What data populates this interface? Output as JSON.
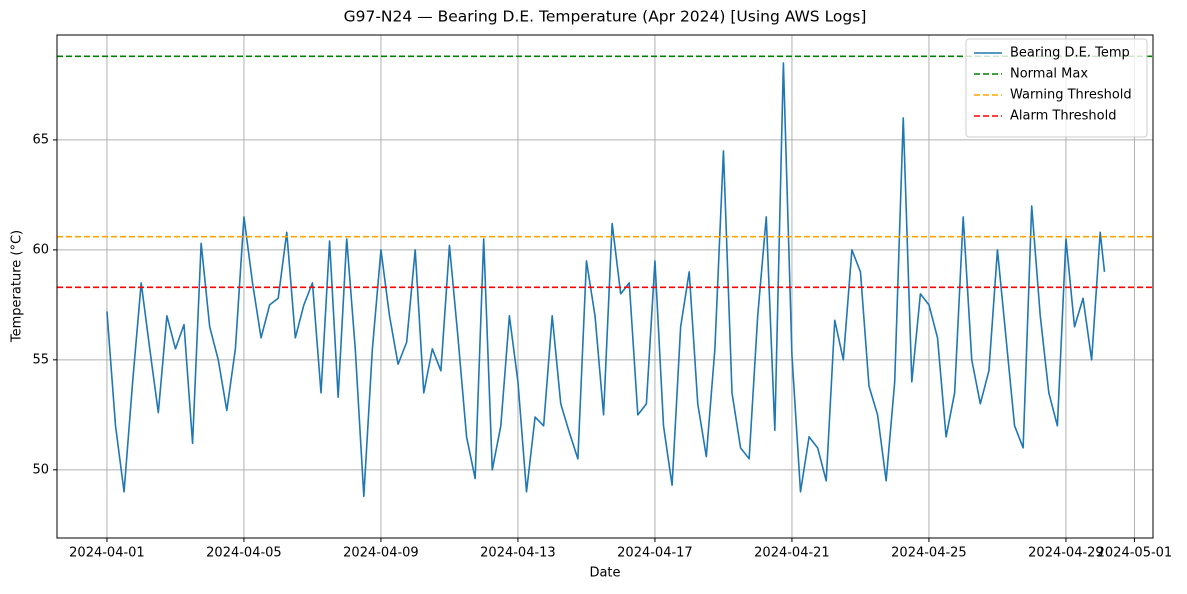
{
  "chart_data": {
    "type": "line",
    "title": "G97-N24 — Bearing D.E. Temperature (Apr 2024) [Using AWS Logs]",
    "xlabel": "Date",
    "ylabel": "Temperature (°C)",
    "x": [
      "2024-04-01T00:00",
      "2024-04-01T06:00",
      "2024-04-01T12:00",
      "2024-04-01T18:00",
      "2024-04-02T00:00",
      "2024-04-02T06:00",
      "2024-04-02T12:00",
      "2024-04-02T18:00",
      "2024-04-03T00:00",
      "2024-04-03T06:00",
      "2024-04-03T12:00",
      "2024-04-03T18:00",
      "2024-04-04T00:00",
      "2024-04-04T06:00",
      "2024-04-04T12:00",
      "2024-04-04T18:00",
      "2024-04-05T00:00",
      "2024-04-05T06:00",
      "2024-04-05T12:00",
      "2024-04-05T18:00",
      "2024-04-06T00:00",
      "2024-04-06T06:00",
      "2024-04-06T12:00",
      "2024-04-06T18:00",
      "2024-04-07T00:00",
      "2024-04-07T06:00",
      "2024-04-07T12:00",
      "2024-04-07T18:00",
      "2024-04-08T00:00",
      "2024-04-08T06:00",
      "2024-04-08T12:00",
      "2024-04-08T18:00",
      "2024-04-09T00:00",
      "2024-04-09T06:00",
      "2024-04-09T12:00",
      "2024-04-09T18:00",
      "2024-04-10T00:00",
      "2024-04-10T06:00",
      "2024-04-10T12:00",
      "2024-04-10T18:00",
      "2024-04-11T00:00",
      "2024-04-11T06:00",
      "2024-04-11T12:00",
      "2024-04-11T18:00",
      "2024-04-12T00:00",
      "2024-04-12T06:00",
      "2024-04-12T12:00",
      "2024-04-12T18:00",
      "2024-04-13T00:00",
      "2024-04-13T06:00",
      "2024-04-13T12:00",
      "2024-04-13T18:00",
      "2024-04-14T00:00",
      "2024-04-14T06:00",
      "2024-04-14T12:00",
      "2024-04-14T18:00",
      "2024-04-15T00:00",
      "2024-04-15T06:00",
      "2024-04-15T12:00",
      "2024-04-15T18:00",
      "2024-04-16T00:00",
      "2024-04-16T06:00",
      "2024-04-16T12:00",
      "2024-04-16T18:00",
      "2024-04-17T00:00",
      "2024-04-17T06:00",
      "2024-04-17T12:00",
      "2024-04-17T18:00",
      "2024-04-18T00:00",
      "2024-04-18T06:00",
      "2024-04-18T12:00",
      "2024-04-18T18:00",
      "2024-04-19T00:00",
      "2024-04-19T06:00",
      "2024-04-19T12:00",
      "2024-04-19T18:00",
      "2024-04-20T00:00",
      "2024-04-20T06:00",
      "2024-04-20T12:00",
      "2024-04-20T18:00",
      "2024-04-21T00:00",
      "2024-04-21T06:00",
      "2024-04-21T12:00",
      "2024-04-21T18:00",
      "2024-04-22T00:00",
      "2024-04-22T06:00",
      "2024-04-22T12:00",
      "2024-04-22T18:00",
      "2024-04-23T00:00",
      "2024-04-23T06:00",
      "2024-04-23T12:00",
      "2024-04-23T18:00",
      "2024-04-24T00:00",
      "2024-04-24T06:00",
      "2024-04-24T12:00",
      "2024-04-24T18:00",
      "2024-04-25T00:00",
      "2024-04-25T06:00",
      "2024-04-25T12:00",
      "2024-04-25T18:00",
      "2024-04-26T00:00",
      "2024-04-26T06:00",
      "2024-04-26T12:00",
      "2024-04-26T18:00",
      "2024-04-27T00:00",
      "2024-04-27T06:00",
      "2024-04-27T12:00",
      "2024-04-27T18:00",
      "2024-04-28T00:00",
      "2024-04-28T06:00",
      "2024-04-28T12:00",
      "2024-04-28T18:00",
      "2024-04-29T00:00",
      "2024-04-29T06:00",
      "2024-04-29T12:00",
      "2024-04-29T18:00",
      "2024-04-30T00:00",
      "2024-04-30T03:00"
    ],
    "series": [
      {
        "name": "Bearing D.E. Temp",
        "color": "#1f77b4",
        "values": [
          57.2,
          52,
          49.0,
          54,
          58.5,
          55.5,
          52.6,
          57,
          55.5,
          56.6,
          51.2,
          60.3,
          56.5,
          55,
          52.7,
          55.5,
          61.5,
          58.5,
          56,
          57.5,
          57.8,
          60.8,
          56,
          57.5,
          58.5,
          53.5,
          60.4,
          53.3,
          60.5,
          55.5,
          48.8,
          55.5,
          60,
          57,
          54.8,
          55.8,
          60,
          53.5,
          55.5,
          54.5,
          60.2,
          56,
          51.5,
          49.6,
          60.5,
          50,
          52,
          57,
          54,
          49,
          52.4,
          52,
          57,
          53,
          51.7,
          50.5,
          59.5,
          57,
          52.5,
          61.2,
          58,
          58.5,
          52.5,
          53,
          59.5,
          52,
          49.3,
          56.5,
          59,
          53,
          50.6,
          55.5,
          64.5,
          53.5,
          51,
          50.5,
          57,
          61.5,
          51.8,
          68.5,
          55.2,
          49,
          51.5,
          51,
          49.5,
          56.8,
          55,
          60,
          59,
          53.8,
          52.5,
          49.5,
          54,
          66,
          54,
          58,
          57.5,
          56,
          51.5,
          53.5,
          61.5,
          55,
          53,
          54.5,
          60,
          56,
          52,
          51,
          62,
          57,
          53.5,
          52,
          60.5,
          56.5,
          57.8,
          55,
          60.8,
          59
        ]
      }
    ],
    "hlines": [
      {
        "name": "Normal Max",
        "color": "#008000",
        "value": 68.8
      },
      {
        "name": "Warning Threshold",
        "color": "#ffa500",
        "value": 60.6
      },
      {
        "name": "Alarm Threshold",
        "color": "#ff0000",
        "value": 58.3
      }
    ],
    "xlim": [
      "2024-03-30T13:00",
      "2024-05-01T13:00"
    ],
    "xticks": [
      "2024-04-01",
      "2024-04-05",
      "2024-04-09",
      "2024-04-13",
      "2024-04-17",
      "2024-04-21",
      "2024-04-25",
      "2024-04-29",
      "2024-05-01"
    ],
    "ylim": [
      46.9,
      69.77
    ],
    "yticks": [
      50,
      55,
      60,
      65
    ],
    "grid": true,
    "legend": "upper right"
  }
}
